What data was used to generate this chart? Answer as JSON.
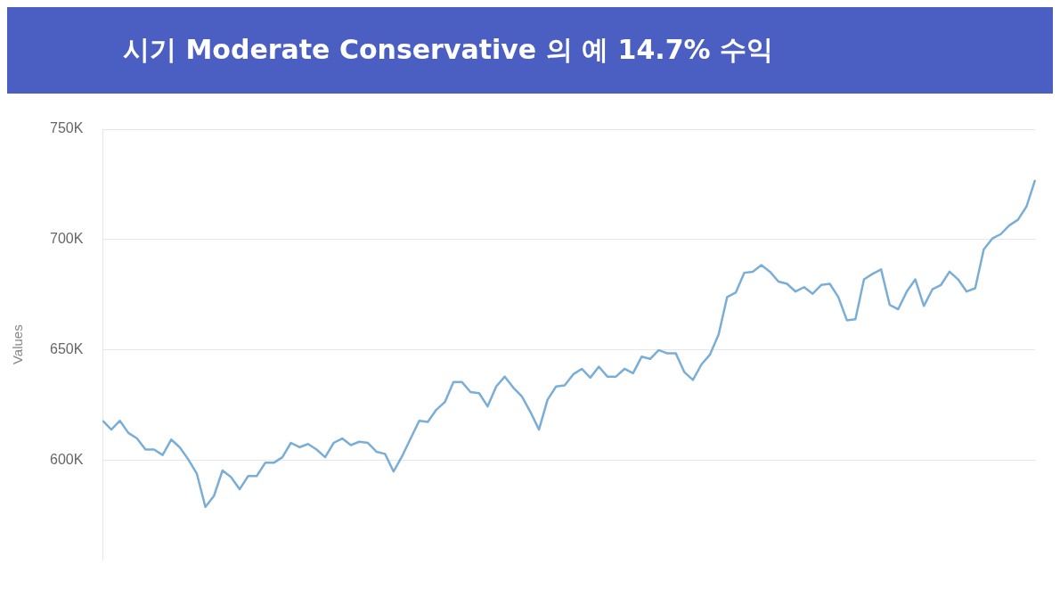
{
  "chart_data": {
    "type": "line",
    "title": "시기 Moderate Conservative 의 예 14.7% 수익",
    "ylabel": "Values",
    "categories": [
      null,
      null,
      null,
      null,
      null,
      null,
      null,
      null,
      null,
      null,
      null,
      null,
      null,
      null,
      null,
      null,
      null,
      null,
      null,
      null,
      null,
      null,
      null,
      null,
      null,
      null,
      null,
      null,
      null,
      null,
      null,
      null,
      null,
      null,
      null,
      null,
      null,
      null,
      null,
      null,
      null,
      null,
      null,
      null,
      null,
      null,
      null,
      null,
      null,
      null,
      null,
      null,
      null,
      null,
      null,
      null,
      null,
      null,
      null,
      null,
      null,
      null,
      null,
      null,
      null,
      null,
      null,
      null,
      null,
      null,
      null,
      null,
      null,
      null,
      null,
      null,
      null,
      null,
      null,
      null,
      null,
      null,
      null,
      null,
      null,
      null,
      null,
      null,
      null,
      null,
      null,
      null,
      null,
      null,
      null,
      null,
      null,
      null,
      null,
      null,
      null,
      null,
      null,
      null,
      null,
      null,
      null,
      null,
      null,
      null
    ],
    "series": [
      {
        "color": "#7aaed6",
        "values": [
          618000,
          614000,
          618000,
          612500,
          610000,
          605000,
          605000,
          602500,
          609500,
          606000,
          600500,
          594000,
          579000,
          584000,
          595500,
          592500,
          587000,
          593000,
          593000,
          599000,
          599000,
          601500,
          608000,
          606000,
          607500,
          605000,
          601500,
          608000,
          610000,
          607000,
          608500,
          608000,
          604000,
          603000,
          595000,
          602000,
          610000,
          618000,
          617500,
          623000,
          626500,
          635500,
          635500,
          631000,
          630500,
          624500,
          633500,
          638000,
          633000,
          629000,
          622000,
          614000,
          627500,
          633500,
          634000,
          639000,
          641500,
          637500,
          642500,
          638000,
          638000,
          641500,
          639500,
          647000,
          646000,
          650000,
          648500,
          648500,
          640000,
          636500,
          643500,
          648000,
          657000,
          674000,
          676000,
          685000,
          685500,
          688500,
          685500,
          681000,
          680000,
          676500,
          678500,
          675500,
          679500,
          680000,
          674000,
          663500,
          664000,
          682000,
          684500,
          686500,
          670500,
          668500,
          676500,
          682000,
          670000,
          677500,
          679500,
          685500,
          682000,
          676500,
          678000,
          695500,
          700500,
          702500,
          706500,
          709000,
          715000,
          727000
        ]
      }
    ],
    "ylim": [
      555000,
      750000
    ],
    "yticks": [
      {
        "value": 600000,
        "label": "600K"
      },
      {
        "value": 650000,
        "label": "650K"
      },
      {
        "value": 700000,
        "label": "700K"
      },
      {
        "value": 750000,
        "label": "750K"
      }
    ],
    "grid": "y",
    "legend": false,
    "tick_labels": "y",
    "marker": "none",
    "line_style": "solid"
  }
}
